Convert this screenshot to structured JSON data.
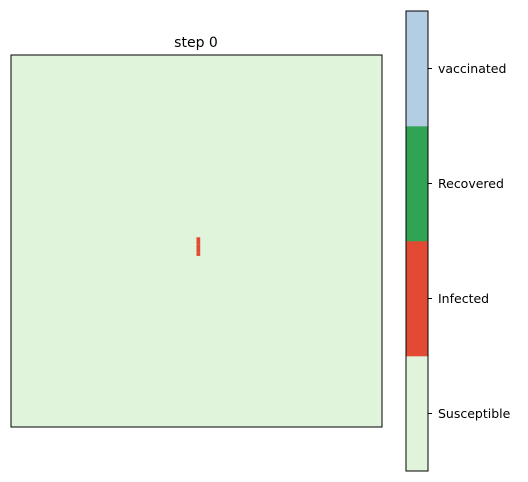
{
  "chart_data": {
    "type": "heatmap",
    "title": "step 0",
    "grid": false,
    "grid_cells": 100,
    "background_state": "Susceptible",
    "cells": [
      {
        "state": "Infected",
        "row": 49,
        "col": 50
      },
      {
        "state": "Infected",
        "row": 50,
        "col": 50
      },
      {
        "state": "Infected",
        "row": 51,
        "col": 50
      },
      {
        "state": "Infected",
        "row": 52,
        "col": 50
      },
      {
        "state": "Infected",
        "row": 53,
        "col": 50
      }
    ],
    "colorbar": {
      "labels": [
        "Susceptible",
        "Infected",
        "Recovered",
        "vaccinated"
      ],
      "colors": [
        "#e0f3db",
        "#e34a33",
        "#31a354",
        "#b3cde3"
      ]
    }
  }
}
